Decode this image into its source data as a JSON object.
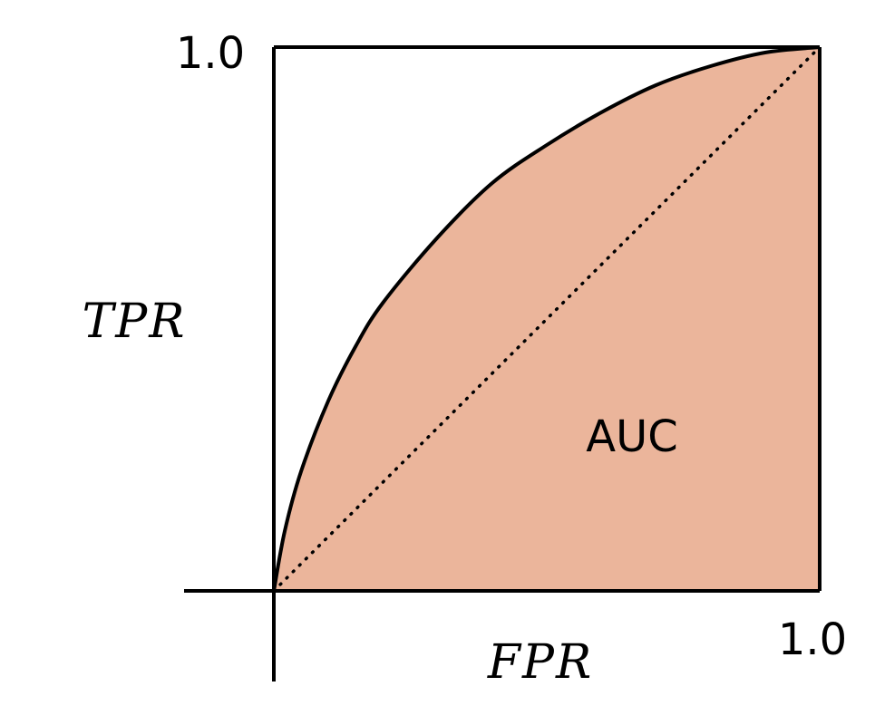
{
  "chart_data": {
    "type": "area",
    "xlabel": "FPR",
    "ylabel": "TPR",
    "xlim": [
      0,
      1
    ],
    "ylim": [
      0,
      1
    ],
    "tick_labels": {
      "x_max": "1.0",
      "y_max": "1.0"
    },
    "region_label": "AUC",
    "series": [
      {
        "name": "",
        "style": "solid curve with filled area beneath",
        "x": [
          0,
          0.02,
          0.05,
          0.1,
          0.15,
          0.2,
          0.3,
          0.4,
          0.5,
          0.6,
          0.7,
          0.8,
          0.9,
          1.0
        ],
        "y": [
          0,
          0.11,
          0.22,
          0.35,
          0.45,
          0.53,
          0.65,
          0.75,
          0.82,
          0.88,
          0.93,
          0.965,
          0.99,
          1.0
        ]
      },
      {
        "name": "",
        "style": "dotted diagonal",
        "x": [
          0,
          1
        ],
        "y": [
          0,
          1
        ]
      }
    ],
    "colors": {
      "fill": "#ebb59b",
      "line": "#000000"
    }
  }
}
